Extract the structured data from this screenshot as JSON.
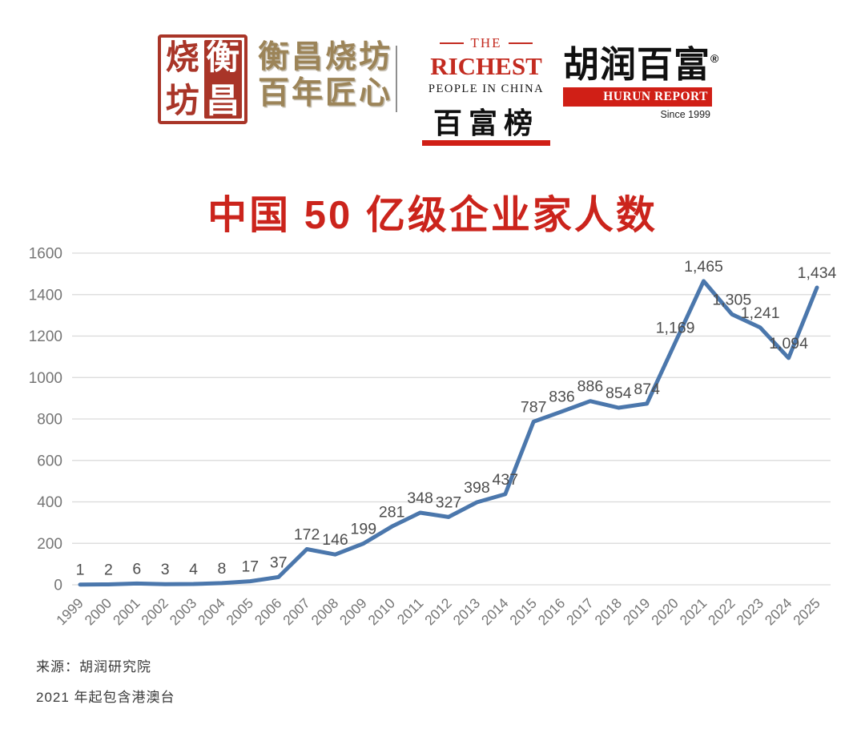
{
  "header": {
    "seal": {
      "left": [
        "烧",
        "坊"
      ],
      "right": [
        "衡",
        "昌"
      ]
    },
    "brand": {
      "line1": "衡昌烧坊",
      "line2": "百年匠心",
      "color": "#9c8458"
    },
    "richest_logo": {
      "the": "THE",
      "richest": "RICHEST",
      "subtitle": "PEOPLE IN CHINA",
      "chinese": "百富榜",
      "color": "#c32b20"
    },
    "hurun_logo": {
      "chinese": "胡润百富",
      "reg": "®",
      "banner": "HURUN REPORT",
      "since": "Since 1999",
      "color": "#d01f16"
    }
  },
  "title": {
    "text": "中国 50 亿级企业家人数",
    "color": "#cb241c"
  },
  "chart_data": {
    "type": "line",
    "title": "中国 50 亿级企业家人数",
    "categories": [
      "1999",
      "2000",
      "2001",
      "2002",
      "2003",
      "2004",
      "2005",
      "2006",
      "2007",
      "2008",
      "2009",
      "2010",
      "2011",
      "2012",
      "2013",
      "2014",
      "2015",
      "2016",
      "2017",
      "2018",
      "2019",
      "2020",
      "2021",
      "2022",
      "2023",
      "2024",
      "2025"
    ],
    "values": [
      1,
      2,
      6,
      3,
      4,
      8,
      17,
      37,
      172,
      146,
      199,
      281,
      348,
      327,
      398,
      437,
      787,
      836,
      886,
      854,
      874,
      1169,
      1465,
      1305,
      1241,
      1094,
      1434
    ],
    "labels": [
      "1",
      "2",
      "6",
      "3",
      "4",
      "8",
      "17",
      "37",
      "172",
      "146",
      "199",
      "281",
      "348",
      "327",
      "398",
      "437",
      "787",
      "836",
      "886",
      "854",
      "874",
      "1,169",
      "1,465",
      "1,305",
      "1,241",
      "1,094",
      "1,434"
    ],
    "xlabel": "",
    "ylabel": "",
    "ylim": [
      0,
      1600
    ],
    "yticks": [
      0,
      200,
      400,
      600,
      800,
      1000,
      1200,
      1400,
      1600
    ],
    "grid": true,
    "legend": "none",
    "line_color": "#4b77ac",
    "grid_color": "#d9d9d9",
    "tick_color": "#757575",
    "label_color": "#4d4d4d"
  },
  "footer": {
    "source": "来源：胡润研究院",
    "note": "2021 年起包含港澳台"
  }
}
